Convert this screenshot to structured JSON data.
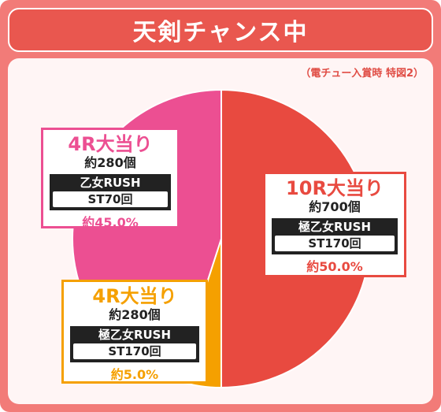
{
  "header": {
    "title": "天剣チャンス中"
  },
  "note": "（電チュー入賞時 特図2）",
  "chart_data": {
    "type": "pie",
    "title": "天剣チャンス中",
    "subtitle": "（電チュー入賞時 特図2）",
    "start_angle_deg": 0,
    "direction": "clockwise",
    "slices": [
      {
        "hit": "10R大当り",
        "balls": "約700個",
        "rush": "極乙女RUSH",
        "st": "ST170回",
        "pct_label": "約50.0%",
        "value": 50.0,
        "color": "#e84a40"
      },
      {
        "hit": "4R大当り",
        "balls": "約280個",
        "rush": "極乙女RUSH",
        "st": "ST170回",
        "pct_label": "約5.0%",
        "value": 5.0,
        "color": "#f5a000"
      },
      {
        "hit": "4R大当り",
        "balls": "約280個",
        "rush": "乙女RUSH",
        "st": "ST70回",
        "pct_label": "約45.0%",
        "value": 45.0,
        "color": "#ec4f92"
      }
    ]
  }
}
